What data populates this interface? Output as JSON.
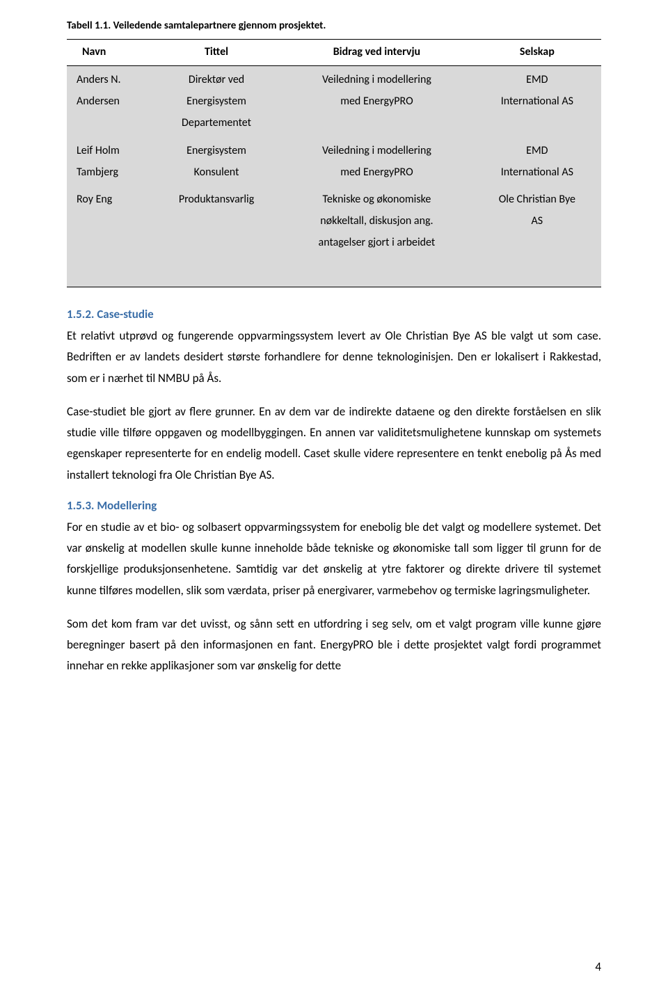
{
  "caption": "Tabell 1.1. Veiledende samtalepartnere gjennom prosjektet.",
  "table": {
    "headers": [
      "Navn",
      "Tittel",
      "Bidrag ved intervju",
      "Selskap"
    ],
    "rows": [
      {
        "name_l1": "Anders N.",
        "name_l2": "Andersen",
        "name_l3": "",
        "title_l1": "Direktør ved",
        "title_l2": "Energisystem",
        "title_l3": "Departementet",
        "contrib_l1": "Veiledning i modellering",
        "contrib_l2": "med EnergyPRO",
        "contrib_l3": "",
        "comp_l1": "EMD",
        "comp_l2": "International AS",
        "comp_l3": ""
      },
      {
        "name_l1": "Leif Holm",
        "name_l2": "Tambjerg",
        "name_l3": "",
        "title_l1": "Energisystem",
        "title_l2": "Konsulent",
        "title_l3": "",
        "contrib_l1": "Veiledning i modellering",
        "contrib_l2": "med EnergyPRO",
        "contrib_l3": "",
        "comp_l1": "EMD",
        "comp_l2": "International AS",
        "comp_l3": ""
      },
      {
        "name_l1": "Roy Eng",
        "name_l2": "",
        "name_l3": "",
        "title_l1": "Produktansvarlig",
        "title_l2": "",
        "title_l3": "",
        "contrib_l1": "Tekniske og økonomiske",
        "contrib_l2": "nøkkeltall, diskusjon ang.",
        "contrib_l3": "antagelser gjort i arbeidet",
        "comp_l1": "Ole Christian Bye",
        "comp_l2": "AS",
        "comp_l3": ""
      }
    ]
  },
  "sec152": {
    "heading": "1.5.2.  Case-studie",
    "p1": "Et relativt utprøvd og fungerende oppvarmingssystem levert av Ole Christian Bye AS ble valgt ut som case. Bedriften er av landets desidert største forhandlere for denne teknologinisjen. Den er lokalisert i Rakkestad, som er i nærhet til NMBU på Ås.",
    "p2": "Case-studiet ble gjort av flere grunner. En av dem var de indirekte dataene og den direkte forståelsen en slik studie ville tilføre oppgaven og modellbyggingen. En annen var validitetsmulighetene kunnskap om systemets egenskaper representerte for en endelig modell. Caset skulle videre representere en tenkt enebolig på Ås med installert teknologi fra Ole Christian Bye AS."
  },
  "sec153": {
    "heading": "1.5.3.  Modellering",
    "p1": "For en studie av et bio- og solbasert oppvarmingssystem for enebolig ble det valgt og modellere systemet. Det var ønskelig at modellen skulle kunne inneholde både tekniske og økonomiske tall som ligger til grunn for de forskjellige produksjonsenhetene. Samtidig var det ønskelig at ytre faktorer og direkte drivere til systemet kunne tilføres modellen, slik som værdata, priser på energivarer, varmebehov og termiske lagringsmuligheter.",
    "p2": "Som det kom fram var det uvisst, og sånn sett en utfordring i seg selv, om et valgt program ville kunne gjøre beregninger basert på den informasjonen en fant. EnergyPRO ble i dette prosjektet valgt fordi programmet innehar en rekke applikasjoner som var ønskelig for dette"
  },
  "page_number": "4"
}
